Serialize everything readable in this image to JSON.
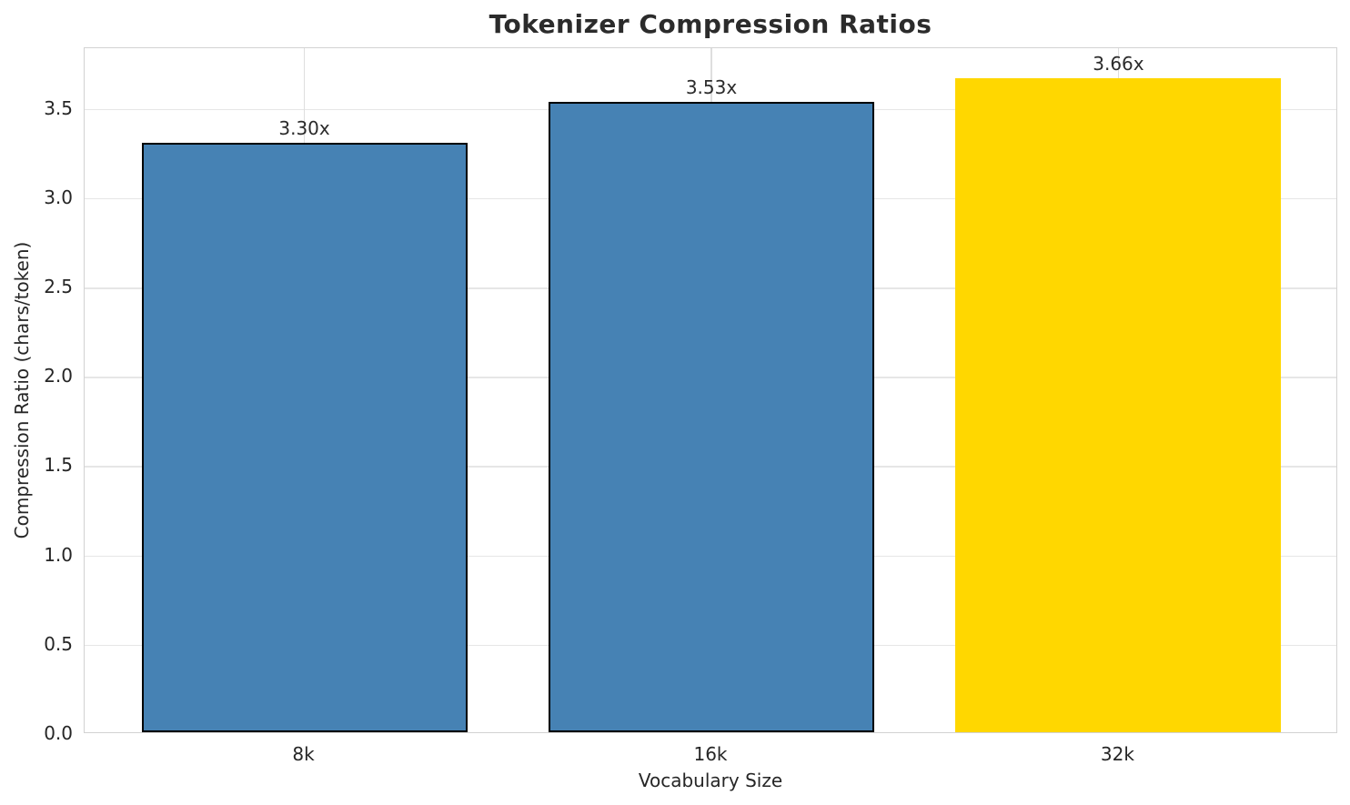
{
  "title": "Tokenizer Compression Ratios",
  "chart_data": {
    "type": "bar",
    "title": "Tokenizer Compression Ratios",
    "xlabel": "Vocabulary Size",
    "ylabel": "Compression Ratio (chars/token)",
    "categories": [
      "8k",
      "16k",
      "32k"
    ],
    "values": [
      3.3,
      3.53,
      3.66
    ],
    "bar_labels": [
      "3.30x",
      "3.53x",
      "3.66x"
    ],
    "bar_fill_colors": [
      "#4682b4",
      "#4682b4",
      "#ffd700"
    ],
    "bar_edge_colors": [
      "#000000",
      "#000000",
      "none"
    ],
    "ylim": [
      0,
      3.84
    ],
    "yticks": [
      "0.0",
      "0.5",
      "1.0",
      "1.5",
      "2.0",
      "2.5",
      "3.0",
      "3.5"
    ],
    "grid": "both",
    "legend": "none",
    "colors": {
      "grid_horizontal": "#e6e6e6",
      "grid_vertical": "#dedede",
      "spine": "#d2d2d2",
      "text": "#262626",
      "highlight": "#ffd700",
      "default_bar": "#4682b4"
    }
  }
}
